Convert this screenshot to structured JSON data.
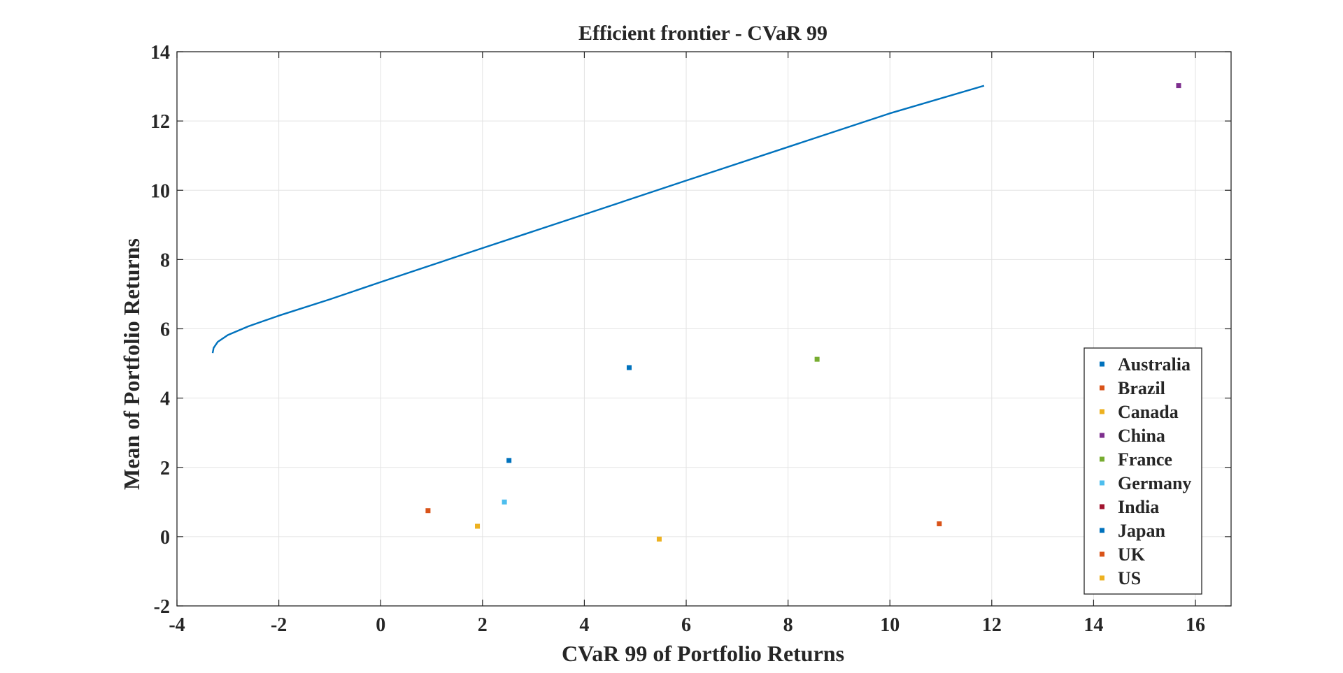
{
  "chart_data": {
    "type": "scatter",
    "title": "Efficient frontier - CVaR 99",
    "xlabel": "CVaR 99 of Portfolio Returns",
    "ylabel": "Mean of Portfolio Returns",
    "xlim": [
      -4,
      16.7
    ],
    "ylim": [
      -2,
      14
    ],
    "xticks": [
      -4,
      -2,
      0,
      2,
      4,
      6,
      8,
      10,
      12,
      14,
      16
    ],
    "yticks": [
      -2,
      0,
      2,
      4,
      6,
      8,
      10,
      12,
      14
    ],
    "grid": true,
    "legend_position": "bottom-right",
    "frontier": {
      "name": "Efficient frontier",
      "color": "#0072BD",
      "x": [
        -3.3,
        -3.28,
        -3.2,
        -3.0,
        -2.6,
        -2.0,
        -1.0,
        0.0,
        2.0,
        4.0,
        6.0,
        8.0,
        10.0,
        11.85
      ],
      "y": [
        5.3,
        5.45,
        5.62,
        5.82,
        6.07,
        6.38,
        6.85,
        7.35,
        8.33,
        9.3,
        10.28,
        11.25,
        12.22,
        13.02
      ]
    },
    "series": [
      {
        "name": "Australia",
        "color": "#0072BD",
        "x": 4.88,
        "y": 4.88
      },
      {
        "name": "Brazil",
        "color": "#D95319",
        "x": 10.97,
        "y": 0.37
      },
      {
        "name": "Canada",
        "color": "#EDB120",
        "x": 5.47,
        "y": -0.07
      },
      {
        "name": "China",
        "color": "#7E2F8E",
        "x": 15.67,
        "y": 13.02
      },
      {
        "name": "France",
        "color": "#77AC30",
        "x": 8.57,
        "y": 5.12
      },
      {
        "name": "Germany",
        "color": "#4DBEEE",
        "x": 2.43,
        "y": 1.0
      },
      {
        "name": "India",
        "color": "#A2142F",
        "x": null,
        "y": null
      },
      {
        "name": "Japan",
        "color": "#0072BD",
        "x": 2.52,
        "y": 2.2
      },
      {
        "name": "UK",
        "color": "#D95319",
        "x": 0.93,
        "y": 0.75
      },
      {
        "name": "US",
        "color": "#EDB120",
        "x": 1.9,
        "y": 0.3
      }
    ]
  }
}
